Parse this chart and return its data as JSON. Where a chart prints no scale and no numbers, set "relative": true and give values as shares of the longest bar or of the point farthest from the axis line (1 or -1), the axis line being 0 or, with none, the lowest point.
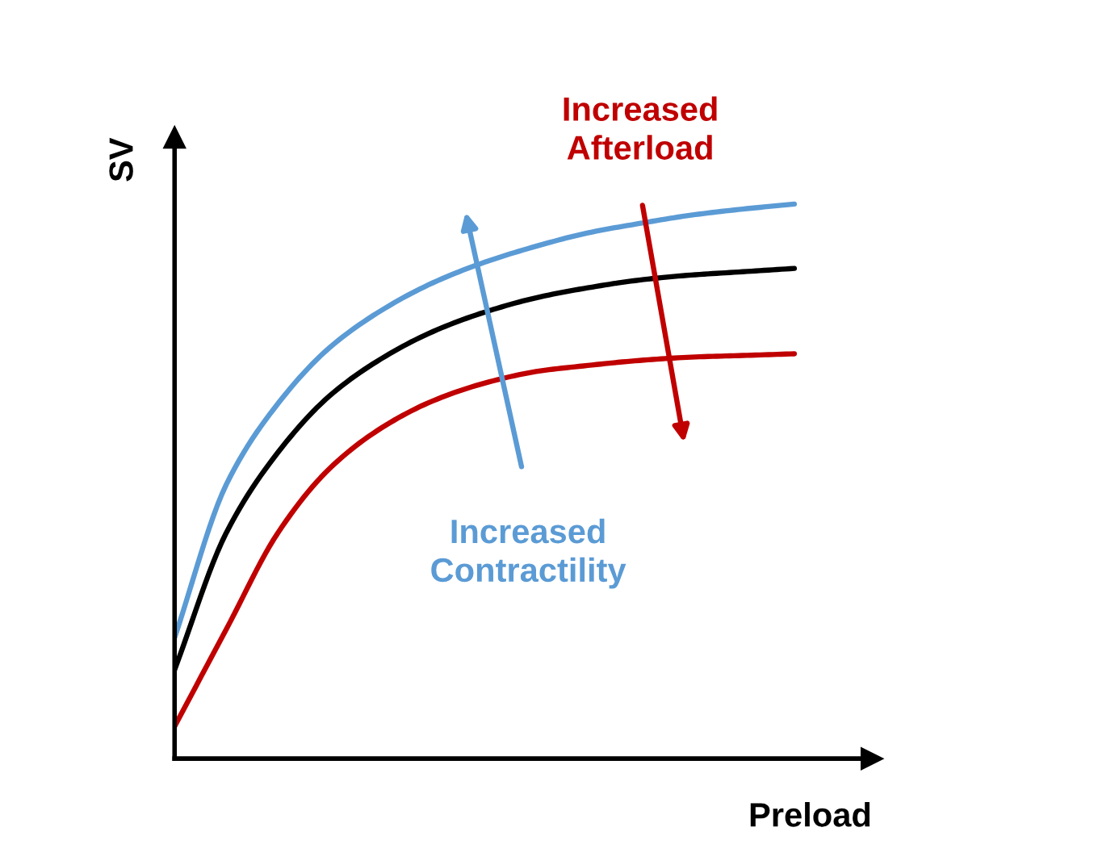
{
  "chart_data": {
    "type": "line",
    "relative": true,
    "xlabel": "Preload",
    "ylabel": "SV",
    "categories": [
      null,
      null,
      null,
      null,
      null,
      null,
      null,
      null,
      null,
      null,
      null,
      null,
      null
    ],
    "series": [
      {
        "color": "#5b9bd5",
        "values": [
          0.218,
          0.494,
          0.64,
          0.741,
          0.808,
          0.858,
          0.895,
          0.924,
          0.948,
          0.965,
          0.98,
          0.991,
          1
        ]
      },
      {
        "color": "#000000",
        "values": [
          0.16,
          0.407,
          0.552,
          0.654,
          0.721,
          0.77,
          0.805,
          0.831,
          0.849,
          0.863,
          0.872,
          0.878,
          0.884
        ]
      },
      {
        "color": "#c00000",
        "values": [
          0.058,
          0.233,
          0.407,
          0.523,
          0.596,
          0.645,
          0.677,
          0.698,
          0.709,
          0.718,
          0.724,
          0.727,
          0.73
        ]
      }
    ],
    "annotations": [
      "Increased\nAfterload",
      "Increased\nContractility"
    ]
  }
}
